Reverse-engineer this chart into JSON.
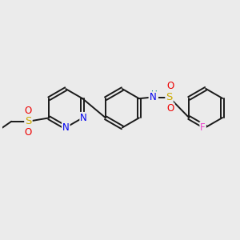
{
  "bg_color": "#ebebeb",
  "bond_color": "#1a1a1a",
  "bond_width": 1.4,
  "dbo": 0.07,
  "atom_colors": {
    "N": "#0000ee",
    "S": "#ccaa00",
    "O": "#ee0000",
    "F": "#ee44cc",
    "H": "#008888"
  },
  "fs": 8.5
}
